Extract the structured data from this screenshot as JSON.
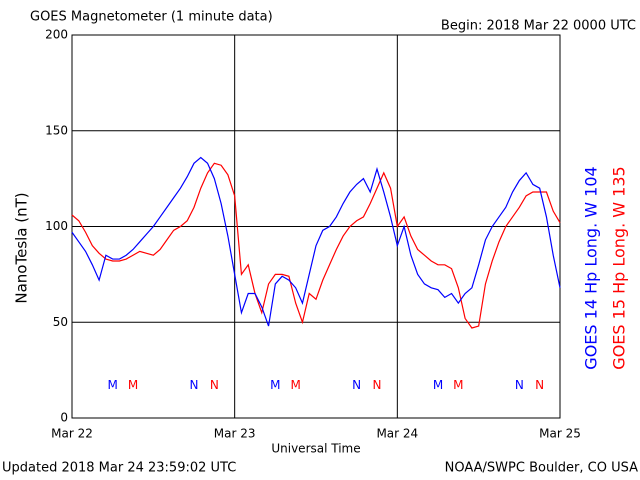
{
  "chart_data": {
    "type": "line",
    "title": "GOES Magnetometer (1 minute data)",
    "subtitle": "Begin:  2018 Mar 22 0000 UTC",
    "ylabel": "NanoTesla (nT)",
    "xlabel": "Universal Time",
    "footer_left": "Updated 2018 Mar 24 23:59:02 UTC",
    "footer_right": "NOAA/SWPC Boulder, CO USA",
    "xlim": [
      0,
      72
    ],
    "xticks": [
      {
        "value": 0,
        "label": "Mar 22"
      },
      {
        "value": 24,
        "label": "Mar 23"
      },
      {
        "value": 48,
        "label": "Mar 24"
      },
      {
        "value": 72,
        "label": "Mar 25"
      }
    ],
    "ylim": [
      0,
      200
    ],
    "yticks": [
      0,
      50,
      100,
      150,
      200
    ],
    "grid": true,
    "x": [
      0,
      1,
      2,
      3,
      4,
      5,
      6,
      7,
      8,
      9,
      10,
      11,
      12,
      13,
      14,
      15,
      16,
      17,
      18,
      19,
      20,
      21,
      22,
      23,
      24,
      25,
      26,
      27,
      28,
      29,
      30,
      31,
      32,
      33,
      34,
      35,
      36,
      37,
      38,
      39,
      40,
      41,
      42,
      43,
      44,
      45,
      46,
      47,
      48,
      49,
      50,
      51,
      52,
      53,
      54,
      55,
      56,
      57,
      58,
      59,
      60,
      61,
      62,
      63,
      64,
      65,
      66,
      67,
      68,
      69,
      70,
      71,
      72
    ],
    "series": [
      {
        "name": "GOES 15 Hp  Long. W 135",
        "color": "#ff0000",
        "values": [
          106,
          103,
          97,
          90,
          86,
          83,
          82,
          82,
          83,
          85,
          87,
          86,
          85,
          88,
          93,
          98,
          100,
          103,
          110,
          120,
          128,
          133,
          132,
          127,
          116,
          75,
          80,
          65,
          55,
          70,
          75,
          75,
          74,
          60,
          50,
          65,
          62,
          72,
          80,
          88,
          95,
          100,
          103,
          105,
          112,
          120,
          128,
          120,
          100,
          105,
          95,
          88,
          85,
          82,
          80,
          80,
          78,
          68,
          52,
          47,
          48,
          70,
          82,
          92,
          100,
          105,
          110,
          116,
          118,
          118,
          118,
          108,
          102
        ]
      },
      {
        "name": "GOES 14 Hp  Long. W 104",
        "color": "#0000ff",
        "values": [
          97,
          92,
          87,
          80,
          72,
          85,
          83,
          83,
          85,
          88,
          92,
          96,
          100,
          105,
          110,
          115,
          120,
          126,
          133,
          136,
          133,
          125,
          112,
          95,
          75,
          55,
          65,
          65,
          58,
          48,
          70,
          74,
          72,
          68,
          60,
          75,
          90,
          98,
          100,
          105,
          112,
          118,
          122,
          125,
          118,
          130,
          118,
          105,
          90,
          100,
          85,
          75,
          70,
          68,
          67,
          63,
          65,
          60,
          65,
          68,
          80,
          93,
          100,
          105,
          110,
          118,
          124,
          128,
          122,
          120,
          105,
          85,
          68
        ]
      }
    ],
    "annotations": [
      {
        "text": "M",
        "x": 6,
        "y": 17,
        "color": "#0000ff"
      },
      {
        "text": "M",
        "x": 9,
        "y": 17,
        "color": "#ff0000"
      },
      {
        "text": "N",
        "x": 18,
        "y": 17,
        "color": "#0000ff"
      },
      {
        "text": "N",
        "x": 21,
        "y": 17,
        "color": "#ff0000"
      },
      {
        "text": "M",
        "x": 30,
        "y": 17,
        "color": "#0000ff"
      },
      {
        "text": "M",
        "x": 33,
        "y": 17,
        "color": "#ff0000"
      },
      {
        "text": "N",
        "x": 42,
        "y": 17,
        "color": "#0000ff"
      },
      {
        "text": "N",
        "x": 45,
        "y": 17,
        "color": "#ff0000"
      },
      {
        "text": "M",
        "x": 54,
        "y": 17,
        "color": "#0000ff"
      },
      {
        "text": "M",
        "x": 57,
        "y": 17,
        "color": "#ff0000"
      },
      {
        "text": "N",
        "x": 66,
        "y": 17,
        "color": "#0000ff"
      },
      {
        "text": "N",
        "x": 69,
        "y": 17,
        "color": "#ff0000"
      }
    ]
  }
}
